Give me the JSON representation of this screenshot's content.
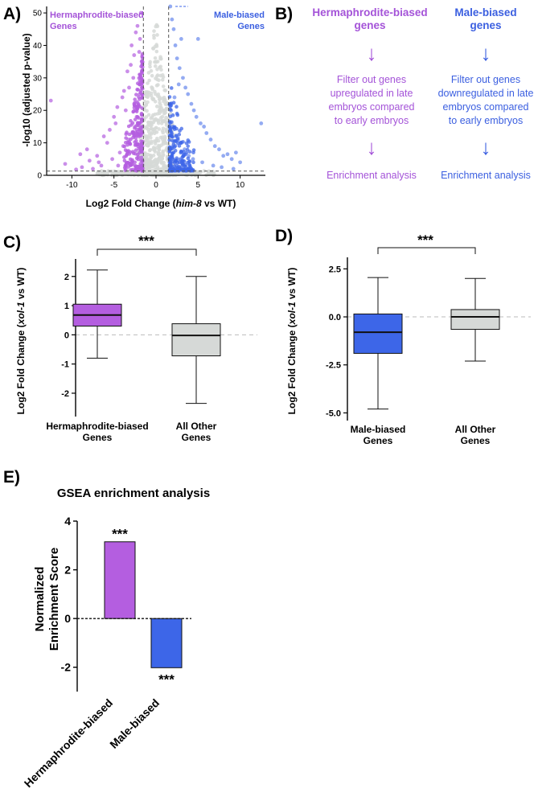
{
  "panels": {
    "A": "A)",
    "B": "B)",
    "C": "C)",
    "D": "D)",
    "E": "E)"
  },
  "colors": {
    "herm": "#b45ee0",
    "male": "#3d66e8",
    "gray": "#d6d9d7",
    "herm_text": "#a453d8",
    "male_text": "#3b5fe0"
  },
  "volcano": {
    "herm_label_1": "Hermaphrodite-biased",
    "herm_label_2": "Genes",
    "male_label_1": "Male-biased",
    "male_label_2": "Genes",
    "xlabel_pre": "Log2 Fold Change (",
    "xlabel_gene": "him-8",
    "xlabel_post": " vs WT)",
    "ylabel": "-log10 (adjusted p-value)"
  },
  "flow": {
    "herm_title_1": "Hermaphrodite-biased",
    "herm_title_2": "genes",
    "herm_filter": [
      "Filter out genes",
      "upregulated in late",
      "embryos compared",
      "to early embryos"
    ],
    "herm_enrich": "Enrichment analysis",
    "male_title_1": "Male-biased",
    "male_title_2": "genes",
    "male_filter": [
      "Filter out genes",
      "downregulated in late",
      "embryos compared",
      "to early embryos"
    ],
    "male_enrich": "Enrichment analysis",
    "arrow": "↓"
  },
  "chart_data": [
    {
      "id": "A",
      "type": "scatter",
      "title": "",
      "xlabel": "Log2 Fold Change (him-8 vs WT)",
      "ylabel": "-log10 (adjusted p-value)",
      "xlim": [
        -13,
        13
      ],
      "ylim": [
        0,
        52
      ],
      "x_ticks": [
        -10,
        -5,
        0,
        5,
        10
      ],
      "y_ticks": [
        0,
        10,
        20,
        30,
        40,
        50
      ],
      "thresholds": {
        "fold_change": [
          -1.5,
          1.5
        ],
        "padj_log10": 1.3
      },
      "series": [
        {
          "name": "Hermaphrodite-biased Genes",
          "color": "herm",
          "points": [
            [
              -12.5,
              23
            ],
            [
              -10.8,
              3.5
            ],
            [
              -9.5,
              1.8
            ],
            [
              -9,
              6.5
            ],
            [
              -8.2,
              8
            ],
            [
              -7.5,
              2
            ],
            [
              -7,
              6
            ],
            [
              -6.2,
              12
            ],
            [
              -5.8,
              10
            ],
            [
              -5.5,
              14
            ],
            [
              -5,
              18
            ],
            [
              -4.8,
              16
            ],
            [
              -4.6,
              21
            ],
            [
              -4.3,
              7
            ],
            [
              -4,
              24
            ],
            [
              -3.8,
              26
            ],
            [
              -3.6,
              20
            ],
            [
              -3.4,
              32
            ],
            [
              -3.2,
              27
            ],
            [
              -3,
              34
            ],
            [
              -2.9,
              40
            ],
            [
              -2.7,
              30
            ],
            [
              -2.6,
              37
            ],
            [
              -2.4,
              44
            ],
            [
              -2.2,
              46
            ],
            [
              -2,
              38
            ],
            [
              -1.9,
              42
            ],
            [
              -1.8,
              50
            ],
            [
              -1.7,
              35
            ],
            [
              -6.8,
              4
            ],
            [
              -5.2,
              5
            ],
            [
              -4.5,
              3
            ],
            [
              -3.9,
              9
            ],
            [
              -3.3,
              11
            ],
            [
              -2.8,
              13
            ],
            [
              -2.5,
              15
            ],
            [
              -2.3,
              18
            ],
            [
              -2.1,
              22
            ],
            [
              -1.95,
              25
            ],
            [
              -1.75,
              28
            ],
            [
              -1.65,
              17
            ],
            [
              -8.8,
              2.5
            ],
            [
              -7.9,
              4.5
            ],
            [
              -6.5,
              3
            ]
          ]
        },
        {
          "name": "Male-biased Genes",
          "color": "male",
          "points": [
            [
              1.7,
              52
            ],
            [
              1.9,
              48
            ],
            [
              2.1,
              45
            ],
            [
              2.3,
              40
            ],
            [
              2.5,
              36
            ],
            [
              2.8,
              33
            ],
            [
              3,
              42
            ],
            [
              3.2,
              30
            ],
            [
              3.5,
              27
            ],
            [
              3.8,
              25
            ],
            [
              4.2,
              22
            ],
            [
              4.5,
              20
            ],
            [
              4.8,
              18
            ],
            [
              5,
              42
            ],
            [
              5.3,
              16
            ],
            [
              5.7,
              15
            ],
            [
              6,
              13
            ],
            [
              6.5,
              11
            ],
            [
              7,
              9
            ],
            [
              7.5,
              8
            ],
            [
              8,
              6
            ],
            [
              8.5,
              6.5
            ],
            [
              9,
              5
            ],
            [
              9.5,
              7
            ],
            [
              10,
              4
            ],
            [
              12.5,
              16
            ],
            [
              2,
              15
            ],
            [
              2.4,
              12
            ],
            [
              2.9,
              10
            ],
            [
              3.4,
              8
            ],
            [
              3.9,
              6
            ],
            [
              4.4,
              5
            ],
            [
              5.5,
              4
            ],
            [
              6.8,
              3
            ],
            [
              7.8,
              2.5
            ],
            [
              9.2,
              2
            ],
            [
              1.8,
              20
            ],
            [
              2.2,
              24
            ],
            [
              2.7,
              28
            ]
          ]
        }
      ]
    },
    {
      "id": "C",
      "type": "box",
      "ylabel": "Log2 Fold Change (xol-1 vs WT)",
      "ylabel_pre": "Log2 Fold Change (",
      "ylabel_gene": "xol-1",
      "ylabel_post": " vs WT)",
      "ylim": [
        -2.8,
        2.6
      ],
      "y_ticks": [
        -2,
        -1,
        0,
        1,
        2
      ],
      "significance": "***",
      "boxes": [
        {
          "label_1": "Hermaphrodite-biased",
          "label_2": "Genes",
          "min": -0.8,
          "q1": 0.3,
          "median": 0.68,
          "q3": 1.05,
          "max": 2.22,
          "color": "herm"
        },
        {
          "label_1": "All Other",
          "label_2": "Genes",
          "min": -2.35,
          "q1": -0.72,
          "median": -0.02,
          "q3": 0.38,
          "max": 2.0,
          "color": "gray"
        }
      ]
    },
    {
      "id": "D",
      "type": "box",
      "ylabel": "Log2 Fold Change (xol-1 vs WT)",
      "ylabel_pre": "Log2 Fold Change (",
      "ylabel_gene": "xol-1",
      "ylabel_post": " vs WT)",
      "ylim": [
        -5.4,
        3.1
      ],
      "y_ticks": [
        -5.0,
        -2.5,
        0.0,
        2.5
      ],
      "y_tick_labels": [
        "-5.0",
        "-2.5",
        "0.0",
        "2.5"
      ],
      "significance": "***",
      "boxes": [
        {
          "label_1": "Male-biased",
          "label_2": "Genes",
          "min": -4.8,
          "q1": -1.9,
          "median": -0.8,
          "q3": 0.15,
          "max": 2.05,
          "color": "male"
        },
        {
          "label_1": "All Other",
          "label_2": "Genes",
          "min": -2.3,
          "q1": -0.65,
          "median": 0.0,
          "q3": 0.38,
          "max": 2.0,
          "color": "gray"
        }
      ]
    },
    {
      "id": "E",
      "type": "bar",
      "title": "GSEA enrichment analysis",
      "ylabel_1": "Normalized",
      "ylabel_2": "Enrichment Score",
      "ylim": [
        -3,
        4
      ],
      "y_ticks": [
        -2,
        0,
        2,
        4
      ],
      "categories": [
        "Hermaphrodite-biased",
        "Male-biased"
      ],
      "values": [
        3.15,
        -2.02
      ],
      "annotations": [
        "***",
        "***"
      ],
      "colors": [
        "herm",
        "male"
      ]
    }
  ]
}
